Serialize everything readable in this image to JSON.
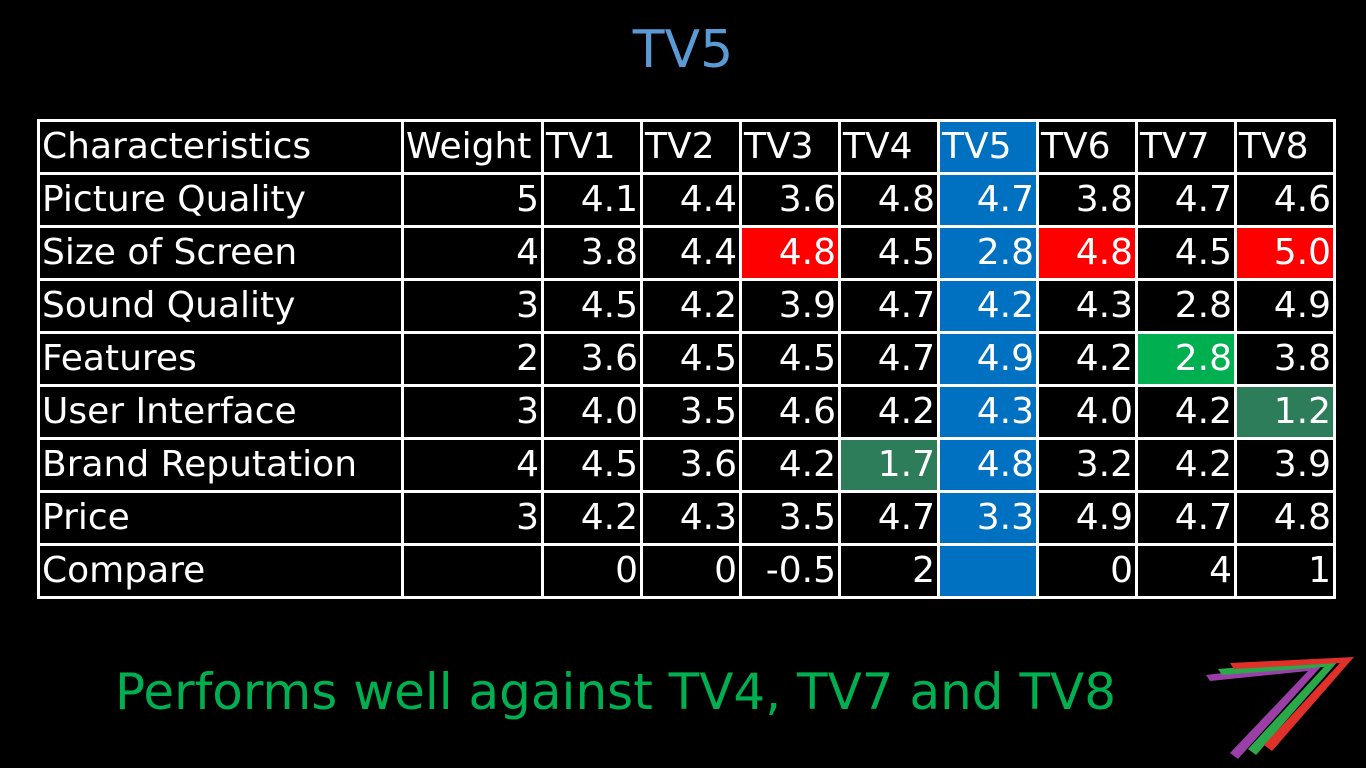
{
  "title": "TV5",
  "subtitle": "Performs well against TV4, TV7 and TV8",
  "colors": {
    "title": "#5b9bd5",
    "subtitle": "#00b050",
    "highlight_column": "#0070c0",
    "green": "#33a050",
    "yellow": "#ffff00",
    "red": "#ff1f1f",
    "orange": "#ffc000"
  },
  "table": {
    "headers": [
      "Characteristics",
      "Weight",
      "TV1",
      "TV2",
      "TV3",
      "TV4",
      "TV5",
      "TV6",
      "TV7",
      "TV8"
    ],
    "rows": [
      {
        "name": "Picture Quality",
        "weight": "5",
        "values": [
          "4.1",
          "4.4",
          "3.6",
          "4.8",
          "4.7",
          "3.8",
          "4.7",
          "4.6"
        ]
      },
      {
        "name": "Size of Screen",
        "weight": "4",
        "values": [
          "3.8",
          "4.4",
          "4.8",
          "4.5",
          "2.8",
          "4.8",
          "4.5",
          "5.0"
        ]
      },
      {
        "name": "Sound Quality",
        "weight": "3",
        "values": [
          "4.5",
          "4.2",
          "3.9",
          "4.7",
          "4.2",
          "4.3",
          "2.8",
          "4.9"
        ]
      },
      {
        "name": "Features",
        "weight": "2",
        "values": [
          "3.6",
          "4.5",
          "4.5",
          "4.7",
          "4.9",
          "4.2",
          "2.8",
          "3.8"
        ]
      },
      {
        "name": "User Interface",
        "weight": "3",
        "values": [
          "4.0",
          "3.5",
          "4.6",
          "4.2",
          "4.3",
          "4.0",
          "4.2",
          "1.2"
        ]
      },
      {
        "name": "Brand Reputation",
        "weight": "4",
        "values": [
          "4.5",
          "3.6",
          "4.2",
          "1.7",
          "4.8",
          "3.2",
          "4.2",
          "3.9"
        ]
      },
      {
        "name": "Price",
        "weight": "3",
        "values": [
          "4.2",
          "4.3",
          "3.5",
          "4.7",
          "3.3",
          "4.9",
          "4.7",
          "4.8"
        ]
      },
      {
        "name": "Compare",
        "weight": "",
        "values": [
          "0",
          "0",
          "-0.5",
          "2",
          "",
          "0",
          "4",
          "1"
        ]
      }
    ]
  }
}
